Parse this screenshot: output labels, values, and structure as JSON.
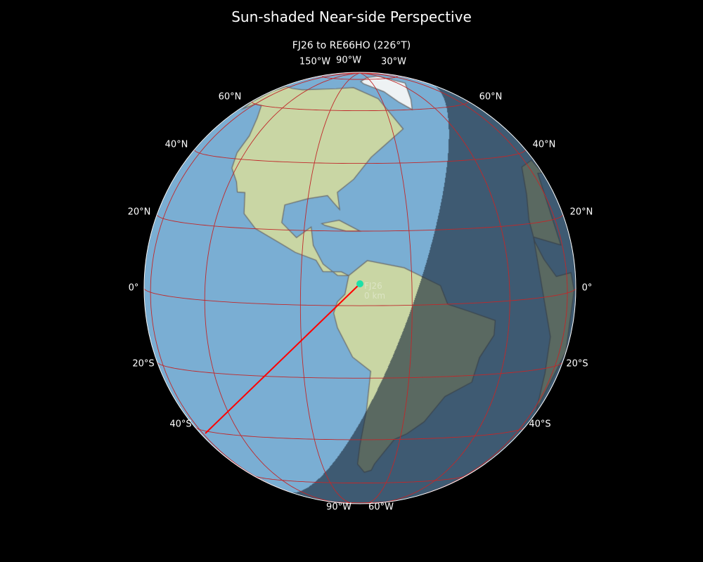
{
  "title": "Sun-shaded Near-side Perspective",
  "subtitle": "FJ26 to RE66HO (226°T)",
  "station": {
    "label": "FJ26",
    "distance": "0 km"
  },
  "lon_labels_top": [
    "150°W",
    "90°W",
    "30°W"
  ],
  "lon_labels_bottom": [
    "90°W",
    "60°W"
  ],
  "lat_labels_left": [
    "60°N",
    "40°N",
    "20°N",
    "0°",
    "20°S",
    "40°S"
  ],
  "lat_labels_right": [
    "60°N",
    "40°N",
    "20°N",
    "0°",
    "20°S",
    "40°S"
  ],
  "colors": {
    "background": "#000000",
    "ocean": "#7aaed3",
    "land": "#c9d6a4",
    "gridlines": "#c0282a",
    "path": "#ff0000",
    "station_marker": "#1de0a8",
    "night_shade": "#1e2d3c"
  },
  "icons": {
    "station_marker": "filled-circle"
  }
}
